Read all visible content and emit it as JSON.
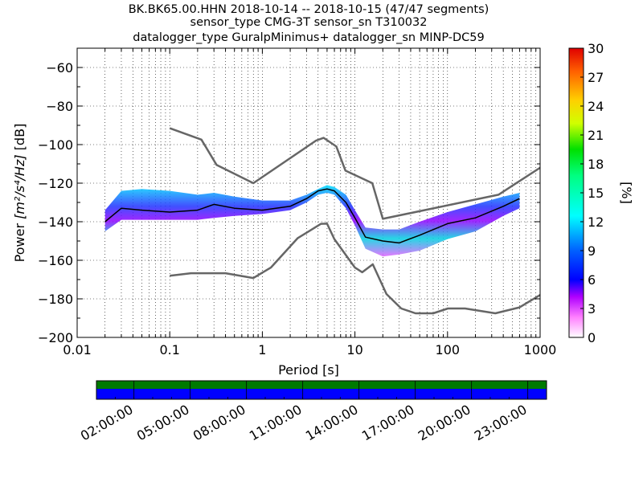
{
  "chart_data": {
    "type": "heatmap",
    "title_lines": [
      "BK.BK65.00.HHN   2018-10-14 -- 2018-10-15  (47/47 segments)",
      "sensor_type CMG-3T sensor_sn T310032",
      "datalogger_type GuralpMinimus+ datalogger_sn MINP-DC59"
    ],
    "xlabel": "Period [s]",
    "ylabel_prefix": "Power ",
    "ylabel_units": "[m²/s⁴/Hz]",
    "ylabel_suffix": " [dB]",
    "x_scale": "log",
    "xlim": [
      0.01,
      1000
    ],
    "ylim": [
      -200,
      -50
    ],
    "x_ticks": [
      0.01,
      0.1,
      1,
      10,
      100,
      1000
    ],
    "x_tick_labels": [
      "0.01",
      "0.1",
      "1",
      "10",
      "100",
      "1000"
    ],
    "y_ticks": [
      -200,
      -180,
      -160,
      -140,
      -120,
      -100,
      -80,
      -60
    ],
    "y_tick_labels": [
      "−200",
      "−180",
      "−160",
      "−140",
      "−120",
      "−100",
      "−80",
      "−60"
    ],
    "grid": "dotted",
    "colorbar": {
      "label": "[%]",
      "range": [
        0,
        30
      ],
      "ticks": [
        0,
        3,
        6,
        9,
        12,
        15,
        18,
        21,
        24,
        27,
        30
      ],
      "tick_labels": [
        "0",
        "3",
        "6",
        "9",
        "12",
        "15",
        "18",
        "21",
        "24",
        "27",
        "30"
      ]
    },
    "noise_models": [
      {
        "name": "NHNM",
        "color": "#666666",
        "points": [
          [
            0.1,
            -91.5
          ],
          [
            0.22,
            -97.4
          ],
          [
            0.32,
            -110.5
          ],
          [
            0.8,
            -120
          ],
          [
            3.8,
            -97.9
          ],
          [
            4.6,
            -96.5
          ],
          [
            6.3,
            -101
          ],
          [
            7.9,
            -113.5
          ],
          [
            15.4,
            -120
          ],
          [
            20,
            -138.5
          ],
          [
            354.8,
            -126
          ],
          [
            1000,
            -112
          ]
        ]
      },
      {
        "name": "NLNM",
        "color": "#666666",
        "points": [
          [
            0.1,
            -168
          ],
          [
            0.17,
            -166.7
          ],
          [
            0.4,
            -166.7
          ],
          [
            0.8,
            -169.2
          ],
          [
            1.24,
            -163.7
          ],
          [
            2.4,
            -148.6
          ],
          [
            4.3,
            -141.1
          ],
          [
            5,
            -141
          ],
          [
            6,
            -149
          ],
          [
            10,
            -163.8
          ],
          [
            12,
            -166.2
          ],
          [
            15.6,
            -162.1
          ],
          [
            21.9,
            -177.5
          ],
          [
            31.6,
            -185
          ],
          [
            45,
            -187.5
          ],
          [
            70,
            -187.5
          ],
          [
            101,
            -185
          ],
          [
            154.5,
            -185
          ],
          [
            328.2,
            -187.5
          ],
          [
            600,
            -184.4
          ],
          [
            1000,
            -178
          ]
        ]
      },
      {
        "name": "mode",
        "color": "#000000",
        "points": [
          [
            0.02,
            -140
          ],
          [
            0.03,
            -133
          ],
          [
            0.05,
            -134
          ],
          [
            0.1,
            -135
          ],
          [
            0.2,
            -134
          ],
          [
            0.3,
            -131
          ],
          [
            0.5,
            -133
          ],
          [
            1,
            -134
          ],
          [
            2,
            -132
          ],
          [
            3,
            -128
          ],
          [
            4,
            -124
          ],
          [
            5,
            -123
          ],
          [
            6,
            -124
          ],
          [
            8,
            -130
          ],
          [
            10,
            -138
          ],
          [
            13,
            -148
          ],
          [
            20,
            -150
          ],
          [
            30,
            -151
          ],
          [
            50,
            -147
          ],
          [
            100,
            -141
          ],
          [
            200,
            -138
          ],
          [
            400,
            -132
          ],
          [
            600,
            -128
          ]
        ]
      }
    ],
    "psd_band": {
      "upper": [
        [
          0.02,
          -134
        ],
        [
          0.03,
          -124
        ],
        [
          0.05,
          -123
        ],
        [
          0.1,
          -124
        ],
        [
          0.2,
          -126
        ],
        [
          0.3,
          -125
        ],
        [
          0.5,
          -127
        ],
        [
          1,
          -129
        ],
        [
          2,
          -129
        ],
        [
          3,
          -126
        ],
        [
          4,
          -123
        ],
        [
          5,
          -121
        ],
        [
          6,
          -122
        ],
        [
          8,
          -126
        ],
        [
          10,
          -134
        ],
        [
          13,
          -143
        ],
        [
          20,
          -144
        ],
        [
          30,
          -144
        ],
        [
          50,
          -140
        ],
        [
          100,
          -135
        ],
        [
          200,
          -131
        ],
        [
          400,
          -127
        ],
        [
          600,
          -125
        ]
      ],
      "lower": [
        [
          0.02,
          -145
        ],
        [
          0.03,
          -139
        ],
        [
          0.05,
          -139
        ],
        [
          0.1,
          -139
        ],
        [
          0.2,
          -139
        ],
        [
          0.3,
          -138
        ],
        [
          0.5,
          -137
        ],
        [
          1,
          -136
        ],
        [
          2,
          -134
        ],
        [
          3,
          -130
        ],
        [
          4,
          -126
        ],
        [
          5,
          -125
        ],
        [
          6,
          -126
        ],
        [
          8,
          -133
        ],
        [
          10,
          -142
        ],
        [
          13,
          -154
        ],
        [
          20,
          -158
        ],
        [
          30,
          -157
        ],
        [
          50,
          -155
        ],
        [
          100,
          -149
        ],
        [
          200,
          -145
        ],
        [
          400,
          -137
        ],
        [
          600,
          -133
        ]
      ]
    },
    "coverage": {
      "tick_labels": [
        "02:00:00",
        "05:00:00",
        "08:00:00",
        "11:00:00",
        "14:00:00",
        "17:00:00",
        "20:00:00",
        "23:00:00"
      ],
      "tick_hours": [
        2,
        5,
        8,
        11,
        14,
        17,
        20,
        23
      ],
      "range_hours": [
        0,
        24
      ],
      "top_color": "#007a00",
      "bottom_color": "#0000ff"
    }
  }
}
